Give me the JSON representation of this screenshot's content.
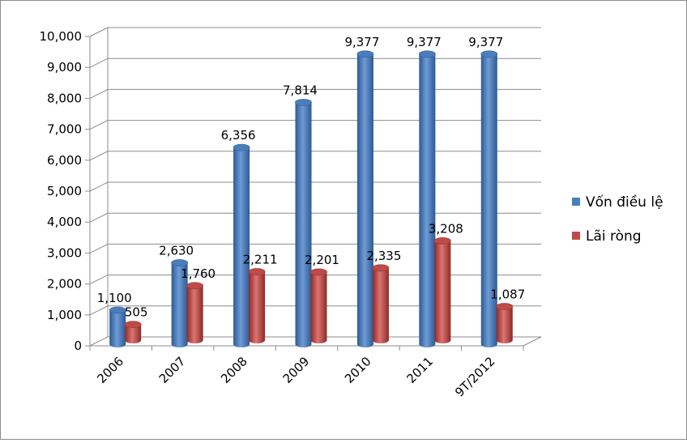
{
  "chart_data": {
    "type": "bar",
    "title": "",
    "xlabel": "",
    "ylabel": "",
    "ylim": [
      0,
      10000
    ],
    "yticks": [
      "0",
      "1,000",
      "2,000",
      "3,000",
      "4,000",
      "5,000",
      "6,000",
      "7,000",
      "8,000",
      "9,000",
      "10,000"
    ],
    "categories": [
      "2006",
      "2007",
      "2008",
      "2009",
      "2010",
      "2011",
      "9T/2012"
    ],
    "grid": true,
    "legend_position": "right",
    "series": [
      {
        "name": "Vốn điều lệ",
        "color": "#4a7ebb",
        "values": [
          1100,
          2630,
          6356,
          7814,
          9377,
          9377,
          9377
        ],
        "labels": [
          "1,100",
          "2,630",
          "6,356",
          "7,814",
          "9,377",
          "9,377",
          "9,377"
        ]
      },
      {
        "name": "Lãi ròng",
        "color": "#be4b48",
        "values": [
          505,
          1760,
          2211,
          2201,
          2335,
          3208,
          1087
        ],
        "labels": [
          "505",
          "1,760",
          "2,211",
          "2,201",
          "2,335",
          "3,208",
          "1,087"
        ]
      }
    ]
  }
}
